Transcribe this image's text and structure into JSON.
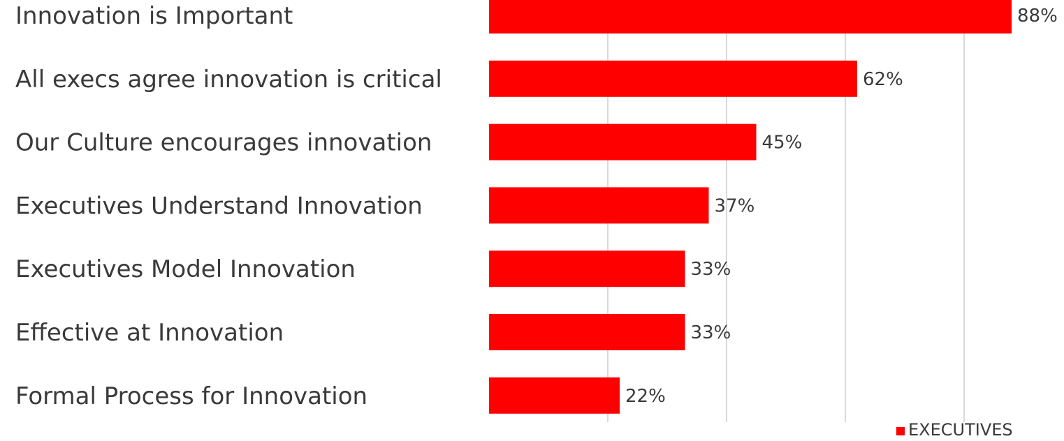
{
  "chart_data": {
    "type": "bar",
    "orientation": "horizontal",
    "categories": [
      "Innovation is Important",
      "All execs agree innovation is critical",
      "Our Culture encourages innovation",
      "Executives Understand Innovation",
      "Executives Model Innovation",
      "Effective at Innovation",
      "Formal Process for Innovation"
    ],
    "series": [
      {
        "name": "EXECUTIVES",
        "values": [
          88,
          62,
          45,
          37,
          33,
          33,
          22
        ],
        "color": "#ff0000"
      }
    ],
    "value_labels": [
      "88%",
      "62%",
      "45%",
      "37%",
      "33%",
      "33%",
      "22%"
    ],
    "xlim": [
      0,
      100
    ],
    "grid": true,
    "legend_position": "bottom-right",
    "title": "",
    "xlabel": "",
    "ylabel": ""
  }
}
